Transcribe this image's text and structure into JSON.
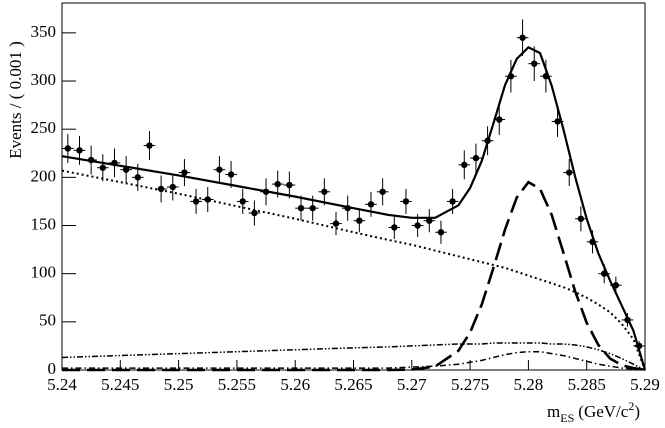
{
  "chart_data": {
    "type": "errorbar",
    "y_label": "Events / ( 0.001 )",
    "x_label": {
      "main": "m",
      "sub": "ES",
      "unit": "(GeV/c",
      "sup": "2",
      "close": ")"
    },
    "xlim": [
      5.24,
      5.29
    ],
    "ylim": [
      0,
      381
    ],
    "xticks": [
      5.24,
      5.245,
      5.25,
      5.255,
      5.26,
      5.265,
      5.27,
      5.275,
      5.28,
      5.285,
      5.29
    ],
    "yticks": [
      0,
      50,
      100,
      150,
      200,
      250,
      300,
      350
    ],
    "color": "#000000",
    "xerr": 0.0005,
    "x": [
      5.2405,
      5.2415,
      5.2425,
      5.2435,
      5.2445,
      5.2455,
      5.2465,
      5.2475,
      5.2485,
      5.2495,
      5.2505,
      5.2515,
      5.2525,
      5.2535,
      5.2545,
      5.2555,
      5.2565,
      5.2575,
      5.2585,
      5.2595,
      5.2605,
      5.2615,
      5.2625,
      5.2635,
      5.2645,
      5.2655,
      5.2665,
      5.2675,
      5.2685,
      5.2695,
      5.2705,
      5.2715,
      5.2725,
      5.2735,
      5.2745,
      5.2755,
      5.2765,
      5.2775,
      5.2785,
      5.2795,
      5.2805,
      5.2815,
      5.2825,
      5.2835,
      5.2845,
      5.2855,
      5.2865,
      5.2875,
      5.2885,
      5.2895
    ],
    "values": [
      230,
      228,
      218,
      210,
      215,
      208,
      200,
      233,
      188,
      190,
      205,
      175,
      177,
      208,
      203,
      175,
      163,
      185,
      193,
      192,
      168,
      168,
      185,
      152,
      168,
      155,
      172,
      185,
      148,
      175,
      150,
      155,
      143,
      175,
      213,
      220,
      238,
      260,
      305,
      345,
      318,
      305,
      258,
      205,
      157,
      133,
      100,
      88,
      52,
      25
    ],
    "errors": [
      15,
      15,
      15,
      14,
      15,
      14,
      14,
      15,
      14,
      14,
      14,
      13,
      13,
      14,
      14,
      13,
      13,
      14,
      14,
      14,
      13,
      13,
      14,
      12,
      13,
      12,
      13,
      14,
      12,
      13,
      12,
      12,
      12,
      13,
      15,
      15,
      15,
      16,
      17,
      19,
      18,
      17,
      16,
      14,
      13,
      12,
      10,
      9,
      7,
      5
    ],
    "curves": {
      "x": [
        5.24,
        5.245,
        5.25,
        5.255,
        5.26,
        5.265,
        5.268,
        5.27,
        5.272,
        5.274,
        5.275,
        5.276,
        5.277,
        5.278,
        5.279,
        5.28,
        5.281,
        5.282,
        5.283,
        5.284,
        5.285,
        5.286,
        5.287,
        5.288,
        5.289,
        5.29
      ],
      "series": [
        {
          "style": "solid",
          "values": [
            222,
            212,
            202,
            191,
            180,
            168,
            161,
            158,
            158,
            171,
            189,
            217,
            256,
            296,
            323,
            335,
            329,
            295,
            250,
            201,
            157,
            121,
            93,
            67,
            41,
            0
          ]
        },
        {
          "style": "dashed",
          "values": [
            0,
            0,
            0,
            0,
            0,
            0,
            0,
            0.4,
            3.6,
            20,
            39,
            68,
            106,
            146,
            179,
            195,
            188,
            161,
            122,
            82,
            49,
            26,
            12,
            5,
            2,
            0
          ]
        },
        {
          "style": "dotted",
          "values": [
            207,
            195,
            183,
            170,
            157,
            143,
            135,
            130,
            124,
            118,
            115,
            112,
            109,
            106,
            102,
            98,
            94,
            90,
            86,
            81,
            75,
            68,
            60,
            48,
            32,
            0
          ]
        },
        {
          "style": "dashdotdot",
          "values": [
            13,
            15,
            17,
            19,
            21,
            23,
            24,
            25,
            26,
            27,
            27,
            27,
            28,
            28,
            28,
            28,
            28,
            27,
            27,
            26,
            24,
            21,
            17,
            12,
            6,
            0
          ]
        },
        {
          "style": "dashdot",
          "values": [
            2,
            2,
            2,
            2,
            2,
            2,
            2,
            3,
            4,
            6,
            8,
            10,
            13,
            16,
            18,
            19,
            19,
            17,
            15,
            12,
            9,
            6,
            4,
            2,
            1,
            0
          ]
        }
      ]
    }
  }
}
